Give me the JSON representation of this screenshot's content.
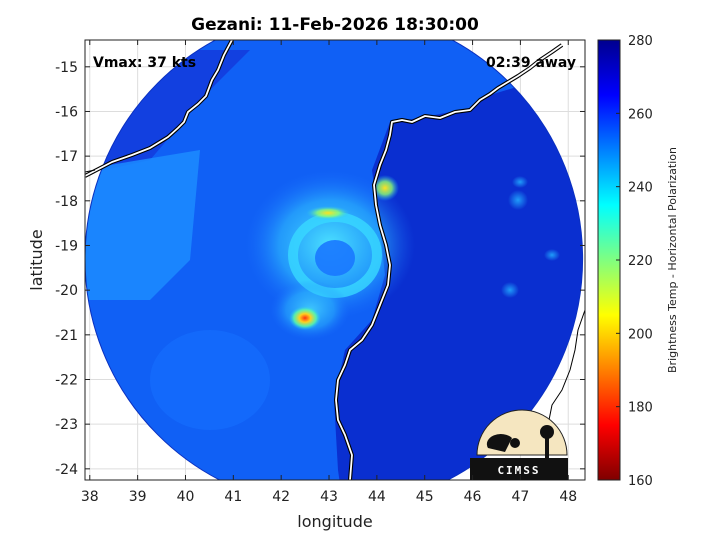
{
  "chart_data": {
    "type": "heatmap",
    "title": "Gezani: 11-Feb-2026 18:30:00",
    "xlabel": "longitude",
    "ylabel": "latitude",
    "xlim": [
      37.9,
      48.35
    ],
    "ylim": [
      -24.25,
      -14.4
    ],
    "xticks": [
      38,
      39,
      40,
      41,
      42,
      43,
      44,
      45,
      46,
      47,
      48
    ],
    "yticks": [
      -15,
      -16,
      -17,
      -18,
      -19,
      -20,
      -21,
      -22,
      -23,
      -24
    ],
    "grid": true,
    "annotations": {
      "vmax": "Vmax: 37 kts",
      "time_offset": "02:39 away"
    },
    "colorbar": {
      "label": "Brightness Temp - Horizontal Polarization",
      "min": 160,
      "max": 280,
      "ticks": [
        280,
        260,
        240,
        220,
        200,
        180,
        160
      ],
      "colormap": "jet",
      "colors": [
        "#7f0000",
        "#ff0000",
        "#ff8000",
        "#ffff00",
        "#80ff80",
        "#00ffff",
        "#0080ff",
        "#0000ff",
        "#00008f"
      ]
    },
    "swath": {
      "center_lon": 43.1,
      "center_lat": -19.3,
      "radius_deg": 5.2
    },
    "storm_center": {
      "lon": 42.9,
      "lat": -19.2
    },
    "features": [
      {
        "name": "inner-core-ring",
        "lon": 43.0,
        "lat": -19.0,
        "tb": 235
      },
      {
        "name": "rainband-north",
        "lon": 42.9,
        "lat": -18.5,
        "tb": 215
      },
      {
        "name": "rainband-northeast",
        "lon": 44.2,
        "lat": -17.8,
        "tb": 210
      },
      {
        "name": "rainband-south",
        "lon": 42.6,
        "lat": -20.6,
        "tb": 190
      }
    ],
    "logo_text": "CIMSS"
  }
}
